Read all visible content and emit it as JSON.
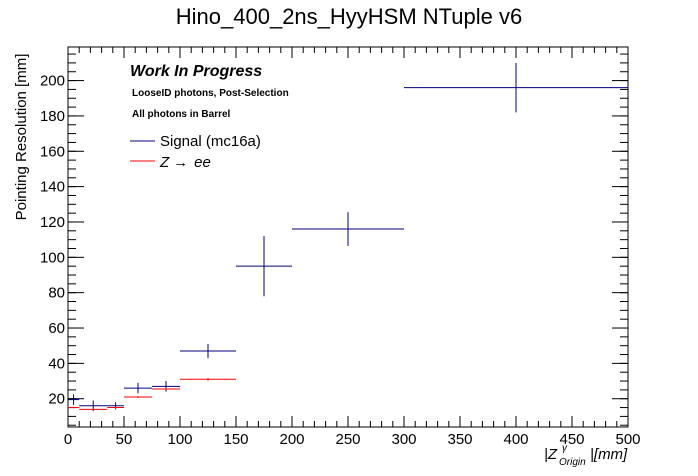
{
  "chart_data": {
    "type": "scatter",
    "title": "Hino_400_2ns_HyyHSM NTuple v6",
    "ylabel": "Pointing Resolution [mm]",
    "xlabel": {
      "prefix": "|Z",
      "superscript": "γ",
      "subscript": "Origin",
      "suffix": "|[mm]"
    },
    "xlim": [
      0,
      500
    ],
    "ylim": [
      4,
      219
    ],
    "x_ticks": [
      0,
      50,
      100,
      150,
      200,
      250,
      300,
      350,
      400,
      450,
      500
    ],
    "y_ticks": [
      20,
      40,
      60,
      80,
      100,
      120,
      140,
      160,
      180,
      200
    ],
    "annotations": {
      "work_in_progress": "Work In Progress",
      "selection": "LooseID photons, Post-Selection",
      "region": "All photons in Barrel"
    },
    "legend": [
      {
        "name": "Signal (mc16a)",
        "color": "#000080"
      },
      {
        "name_prefix": "Z",
        "arrow": "→",
        "name_suffix": "ee",
        "color": "#ff0000"
      }
    ],
    "series": [
      {
        "name": "Signal (mc16a)",
        "color": "#000080",
        "points": [
          {
            "x": 5,
            "x_lo": 0,
            "x_hi": 10,
            "y": 19.5,
            "y_err": 3
          },
          {
            "x": 22.5,
            "x_lo": 10,
            "x_hi": 35,
            "y": 16,
            "y_err": 3
          },
          {
            "x": 42.5,
            "x_lo": 35,
            "x_hi": 50,
            "y": 16,
            "y_err": 2
          },
          {
            "x": 62.5,
            "x_lo": 50,
            "x_hi": 75,
            "y": 26,
            "y_err": 3
          },
          {
            "x": 87.5,
            "x_lo": 75,
            "x_hi": 100,
            "y": 27,
            "y_err": 3
          },
          {
            "x": 125,
            "x_lo": 100,
            "x_hi": 150,
            "y": 47,
            "y_err": 4
          },
          {
            "x": 175,
            "x_lo": 150,
            "x_hi": 200,
            "y": 95,
            "y_err": 17
          },
          {
            "x": 250,
            "x_lo": 200,
            "x_hi": 300,
            "y": 116,
            "y_err": 9.5
          },
          {
            "x": 400,
            "x_lo": 300,
            "x_hi": 500,
            "y": 196,
            "y_err": 14
          }
        ]
      },
      {
        "name": "Z→ee",
        "color": "#ff0000",
        "points": [
          {
            "x": 5,
            "x_lo": 0,
            "x_hi": 10,
            "y": 15,
            "y_err": 0.4
          },
          {
            "x": 22.5,
            "x_lo": 10,
            "x_hi": 35,
            "y": 14,
            "y_err": 0.4
          },
          {
            "x": 42.5,
            "x_lo": 35,
            "x_hi": 50,
            "y": 15,
            "y_err": 0.4
          },
          {
            "x": 62.5,
            "x_lo": 50,
            "x_hi": 75,
            "y": 21,
            "y_err": 0.5
          },
          {
            "x": 87.5,
            "x_lo": 75,
            "x_hi": 100,
            "y": 25.5,
            "y_err": 0.6
          },
          {
            "x": 125,
            "x_lo": 100,
            "x_hi": 150,
            "y": 31,
            "y_err": 0.8
          }
        ]
      }
    ]
  }
}
